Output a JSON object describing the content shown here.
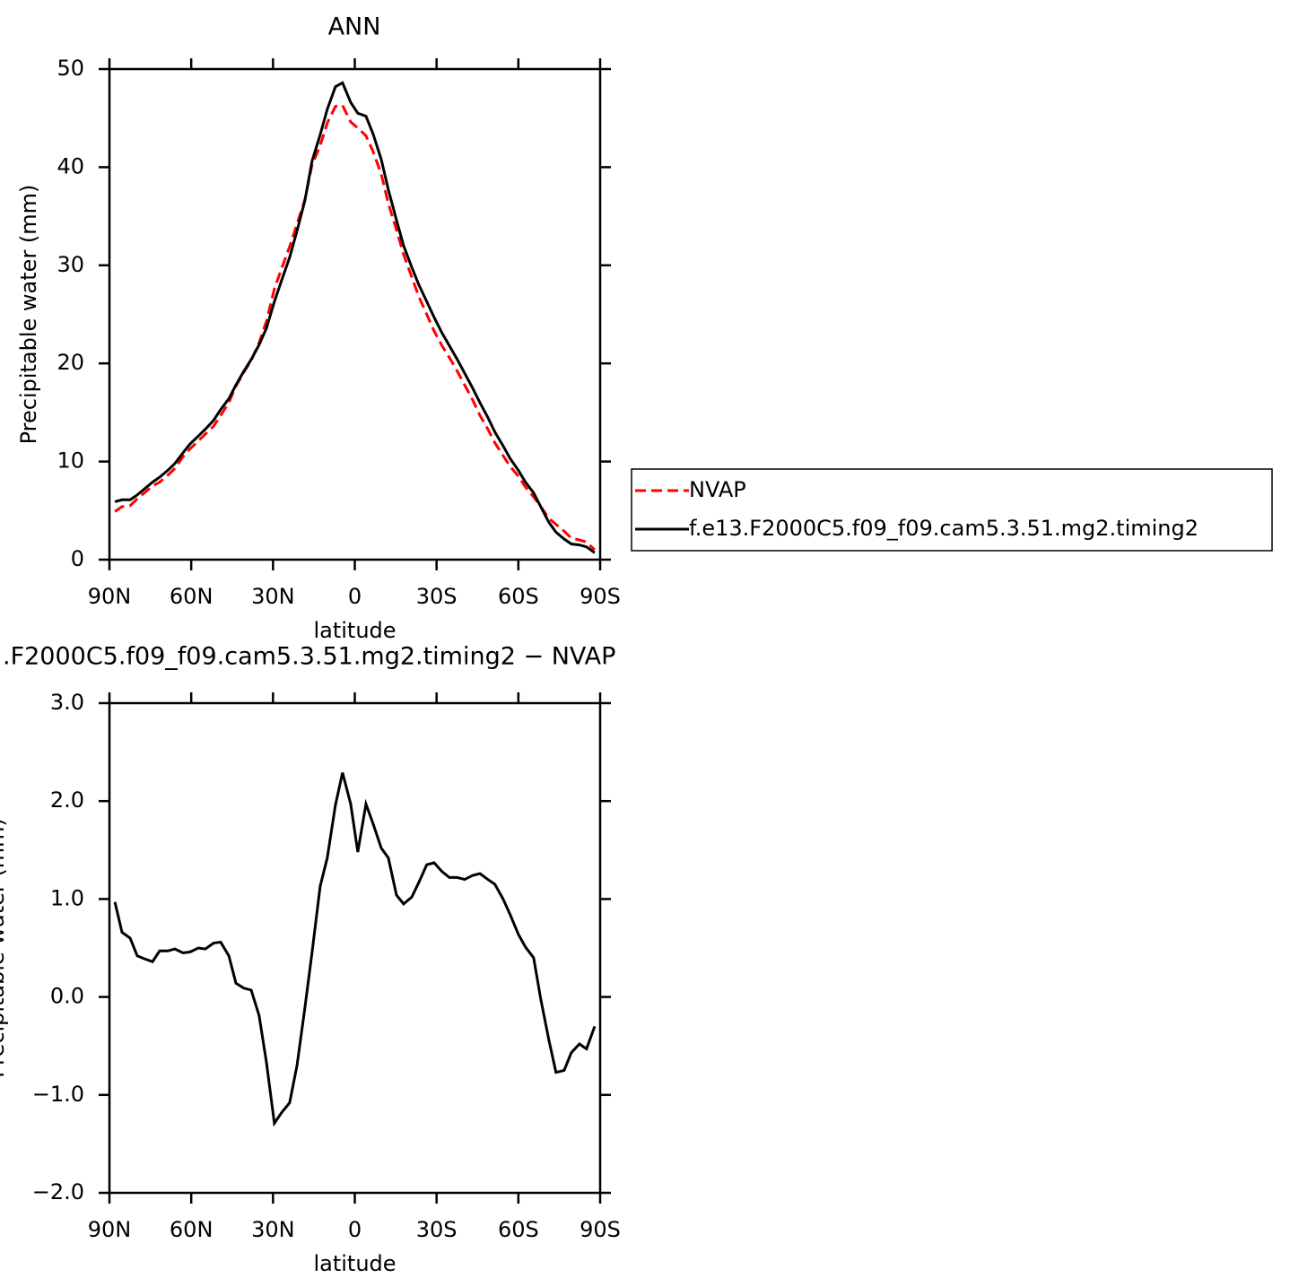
{
  "chart_data": [
    {
      "type": "line",
      "title": "ANN",
      "xlabel": "latitude",
      "ylabel": "Precipitable water (mm)",
      "x": [
        88,
        85.4,
        82.4,
        79.8,
        77.2,
        74.2,
        71.6,
        68.6,
        66.0,
        63.0,
        60.4,
        57.4,
        54.8,
        51.8,
        49.2,
        46.2,
        43.6,
        40.7,
        38.0,
        35.1,
        32.4,
        29.5,
        26.8,
        23.9,
        21.2,
        18.3,
        15.7,
        12.7,
        10.1,
        7.1,
        4.5,
        1.5,
        -1.1,
        -4.1,
        -6.7,
        -9.7,
        -12.3,
        -15.3,
        -17.9,
        -20.9,
        -23.5,
        -26.4,
        -29.1,
        -32.0,
        -34.7,
        -37.6,
        -40.3,
        -43.2,
        -45.9,
        -48.8,
        -51.4,
        -54.4,
        -57.0,
        -60.0,
        -62.6,
        -65.6,
        -68.2,
        -71.2,
        -73.8,
        -76.8,
        -79.4,
        -82.4,
        -85.0,
        -88.0
      ],
      "series": [
        {
          "name": "NVAP",
          "color": "#ff0000",
          "dash": "dashed",
          "values": [
            4.9,
            5.4,
            5.5,
            6.2,
            6.8,
            7.5,
            7.9,
            8.6,
            9.3,
            10.5,
            11.3,
            12.1,
            12.8,
            13.6,
            14.7,
            16.0,
            17.7,
            19.1,
            20.3,
            22.1,
            24.3,
            27.6,
            29.7,
            31.9,
            34.2,
            36.7,
            40.2,
            42.2,
            44.5,
            46.2,
            46.3,
            44.6,
            44.0,
            43.2,
            41.6,
            39.3,
            36.3,
            33.6,
            31.1,
            28.8,
            26.8,
            25.0,
            23.3,
            21.8,
            20.6,
            19.2,
            17.8,
            16.3,
            14.7,
            13.3,
            11.9,
            10.6,
            9.5,
            8.5,
            7.4,
            6.4,
            5.4,
            4.2,
            3.6,
            2.9,
            2.2,
            2.0,
            1.8,
            1.0
          ]
        },
        {
          "name": "f.e13.F2000C5.f09_f09.cam5.3.51.mg2.timing2",
          "color": "#000000",
          "dash": "solid",
          "values": [
            5.9,
            6.1,
            6.1,
            6.6,
            7.2,
            7.9,
            8.4,
            9.1,
            9.8,
            10.9,
            11.8,
            12.6,
            13.3,
            14.2,
            15.3,
            16.4,
            17.8,
            19.2,
            20.4,
            21.9,
            23.6,
            26.3,
            28.5,
            30.8,
            33.5,
            36.6,
            40.6,
            43.3,
            45.9,
            48.2,
            48.6,
            46.6,
            45.5,
            45.2,
            43.4,
            40.8,
            37.7,
            34.6,
            32.0,
            29.8,
            28.0,
            26.3,
            24.7,
            23.1,
            21.8,
            20.4,
            19.0,
            17.5,
            16.0,
            14.5,
            13.0,
            11.6,
            10.3,
            9.1,
            7.9,
            6.8,
            5.4,
            3.8,
            2.8,
            2.1,
            1.6,
            1.5,
            1.3,
            0.7
          ]
        }
      ],
      "xlim": [
        90,
        -90
      ],
      "xticks": [
        {
          "value": 90,
          "label": "90N"
        },
        {
          "value": 60,
          "label": "60N"
        },
        {
          "value": 30,
          "label": "30N"
        },
        0,
        {
          "value": -30,
          "label": "30S"
        },
        {
          "value": -60,
          "label": "60S"
        },
        {
          "value": -90,
          "label": "90S"
        }
      ],
      "ylim": [
        0,
        50
      ],
      "yticks": [
        0,
        10,
        20,
        30,
        40,
        50
      ],
      "legend": "right"
    },
    {
      "type": "line",
      "title": ".F2000C5.f09_f09.cam5.3.51.mg2.timing2 − NVAP",
      "xlabel": "latitude",
      "ylabel": "Precipitable water (mm)",
      "x": [
        88,
        85.4,
        82.4,
        79.8,
        77.2,
        74.2,
        71.6,
        68.6,
        66.0,
        63.0,
        60.4,
        57.4,
        54.8,
        51.8,
        49.2,
        46.2,
        43.6,
        40.7,
        38.0,
        35.1,
        32.4,
        29.5,
        26.8,
        23.9,
        21.2,
        18.3,
        15.7,
        12.7,
        10.1,
        7.1,
        4.5,
        1.5,
        -1.1,
        -4.1,
        -6.7,
        -9.7,
        -12.3,
        -15.3,
        -17.9,
        -20.9,
        -23.5,
        -26.4,
        -29.1,
        -32.0,
        -34.7,
        -37.6,
        -40.3,
        -43.2,
        -45.9,
        -48.8,
        -51.4,
        -54.4,
        -57.0,
        -60.0,
        -62.6,
        -65.6,
        -68.2,
        -71.2,
        -73.8,
        -76.8,
        -79.4,
        -82.4,
        -85.0,
        -88.0
      ],
      "series": [
        {
          "color": "#000000",
          "dash": "solid",
          "values": [
            0.97,
            0.66,
            0.6,
            0.42,
            0.39,
            0.36,
            0.47,
            0.47,
            0.49,
            0.45,
            0.46,
            0.5,
            0.49,
            0.55,
            0.56,
            0.42,
            0.14,
            0.09,
            0.07,
            -0.19,
            -0.67,
            -1.29,
            -1.18,
            -1.08,
            -0.7,
            -0.11,
            0.45,
            1.13,
            1.42,
            1.96,
            2.29,
            1.97,
            1.48,
            1.97,
            1.77,
            1.52,
            1.42,
            1.04,
            0.95,
            1.02,
            1.17,
            1.35,
            1.37,
            1.28,
            1.22,
            1.22,
            1.2,
            1.24,
            1.26,
            1.2,
            1.15,
            1.0,
            0.84,
            0.64,
            0.51,
            0.4,
            -0.02,
            -0.44,
            -0.77,
            -0.75,
            -0.57,
            -0.48,
            -0.53,
            -0.3
          ]
        }
      ],
      "xlim": [
        90,
        -90
      ],
      "xticks": [
        {
          "value": 90,
          "label": "90N"
        },
        {
          "value": 60,
          "label": "60N"
        },
        {
          "value": 30,
          "label": "30N"
        },
        0,
        {
          "value": -30,
          "label": "30S"
        },
        {
          "value": -60,
          "label": "60S"
        },
        {
          "value": -90,
          "label": "90S"
        }
      ],
      "ylim": [
        -2,
        3
      ],
      "yticks": [
        {
          "value": -2,
          "label": "−2.0"
        },
        {
          "value": -1,
          "label": "−1.0"
        },
        {
          "value": 0,
          "label": "0.0"
        },
        {
          "value": 1,
          "label": "1.0"
        },
        {
          "value": 2,
          "label": "2.0"
        },
        {
          "value": 3,
          "label": "3.0"
        }
      ]
    }
  ]
}
